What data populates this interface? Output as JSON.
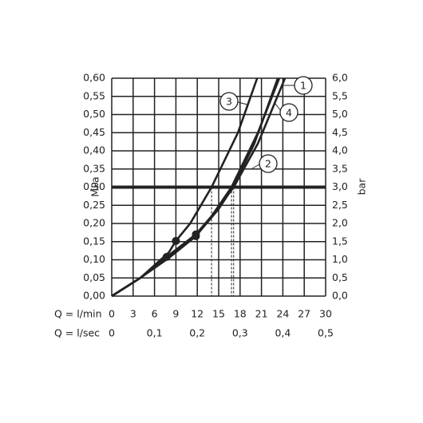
{
  "chart_data": {
    "type": "line",
    "y_label": "MPa",
    "y2_label": "bar",
    "x_label": "Q = l/min",
    "x2_label": "Q = l/sec",
    "xlim": [
      0,
      30
    ],
    "xticks": [
      0,
      3,
      6,
      9,
      12,
      15,
      18,
      21,
      24,
      27,
      30
    ],
    "x2lim": [
      0,
      0.5
    ],
    "x2ticks": [
      0,
      {
        "value": 0.1,
        "label": "0,1"
      },
      {
        "value": 0.2,
        "label": "0,2"
      },
      {
        "value": 0.3,
        "label": "0,3"
      },
      {
        "value": 0.4,
        "label": "0,4"
      },
      {
        "value": 0.5,
        "label": "0,5"
      }
    ],
    "ylim": [
      0,
      0.6
    ],
    "yticks": [
      {
        "value": 0,
        "label": "0,00"
      },
      {
        "value": 0.05,
        "label": "0,05"
      },
      {
        "value": 0.1,
        "label": "0,10"
      },
      {
        "value": 0.15,
        "label": "0,15"
      },
      {
        "value": 0.2,
        "label": "0,20"
      },
      {
        "value": 0.25,
        "label": "0,25"
      },
      {
        "value": 0.3,
        "label": "0,30"
      },
      {
        "value": 0.35,
        "label": "0,35"
      },
      {
        "value": 0.4,
        "label": "0,40"
      },
      {
        "value": 0.45,
        "label": "0,45"
      },
      {
        "value": 0.5,
        "label": "0,50"
      },
      {
        "value": 0.55,
        "label": "0,55"
      },
      {
        "value": 0.6,
        "label": "0,60"
      }
    ],
    "y2lim": [
      0,
      6
    ],
    "y2ticks": [
      {
        "value": 0,
        "label": "0,0"
      },
      {
        "value": 0.5,
        "label": "0,5"
      },
      {
        "value": 1,
        "label": "1,0"
      },
      {
        "value": 1.5,
        "label": "1,5"
      },
      {
        "value": 2,
        "label": "2,0"
      },
      {
        "value": 2.5,
        "label": "2,5"
      },
      {
        "value": 3,
        "label": "3,0"
      },
      {
        "value": 3.5,
        "label": "3,5"
      },
      {
        "value": 4,
        "label": "4,0"
      },
      {
        "value": 4.5,
        "label": "4,5"
      },
      {
        "value": 5,
        "label": "5,0"
      },
      {
        "value": 5.5,
        "label": "5,5"
      },
      {
        "value": 6,
        "label": "6,0"
      }
    ],
    "grid": true,
    "color": "#222222",
    "series": [
      {
        "name": "1",
        "x": [
          0,
          4,
          8,
          12,
          15,
          17,
          20,
          23.3
        ],
        "values": [
          0,
          0.05,
          0.11,
          0.17,
          0.24,
          0.3,
          0.42,
          0.6
        ]
      },
      {
        "name": "2",
        "x": [
          0,
          4,
          8,
          11.8,
          14,
          16.8,
          20.5,
          23.5
        ],
        "values": [
          0,
          0.05,
          0.105,
          0.165,
          0.22,
          0.3,
          0.45,
          0.6
        ]
      },
      {
        "name": "3",
        "x": [
          0,
          4,
          8,
          9,
          11,
          14,
          17.7,
          20.4
        ],
        "values": [
          0,
          0.05,
          0.12,
          0.152,
          0.2,
          0.3,
          0.45,
          0.6
        ]
      },
      {
        "name": "4",
        "x": [
          0,
          4,
          7.7,
          11.8,
          14,
          17.1,
          20.5,
          24.3
        ],
        "values": [
          0,
          0.05,
          0.108,
          0.17,
          0.22,
          0.3,
          0.42,
          0.6
        ]
      }
    ],
    "points": [
      {
        "x": 9,
        "y": 0.152
      },
      {
        "x": 11.8,
        "y": 0.165
      },
      {
        "x": 11.8,
        "y": 0.17
      },
      {
        "x": 7.7,
        "y": 0.108
      }
    ],
    "reference_line": 0.3,
    "drop_lines": [
      14,
      16.8,
      17.1
    ]
  }
}
